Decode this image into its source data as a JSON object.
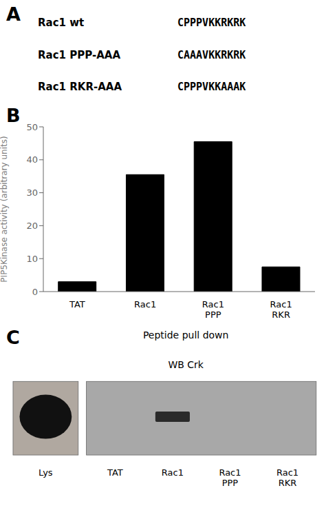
{
  "chart_data": [
    {
      "type": "text",
      "annotations": [
        "A",
        "Rac1 wt",
        "CPPPVKKRKRK",
        "Rac1 PPP-AAA",
        "CAAAVKKRKRK",
        "Rac1 RKR-AAA",
        "CPPPVKKAAAK"
      ]
    },
    {
      "type": "bar",
      "annotations": [
        "B"
      ],
      "categories": [
        "TAT",
        "Rac1",
        "Rac1\nPPP",
        "Rac1\nRKR"
      ],
      "values": [
        3.0,
        35.5,
        45.5,
        7.5
      ],
      "ylabel": "PIP5Kinase activity (arbitrary units)",
      "ylim": [
        0,
        50
      ],
      "yticks": [
        0,
        10,
        20,
        30,
        40,
        50
      ],
      "color": "#000000",
      "grid": false
    },
    {
      "type": "blot",
      "annotations": [
        "C"
      ],
      "title": "Peptide pull down",
      "subtitle": "WB Crk",
      "categories": [
        "Lys",
        "TAT",
        "Rac1",
        "Rac1\nPPP",
        "Rac1\nRKR"
      ],
      "colors": [
        "#b0a8a0",
        "#a8a8a8",
        "#111111",
        "#2a2a2a"
      ]
    }
  ]
}
